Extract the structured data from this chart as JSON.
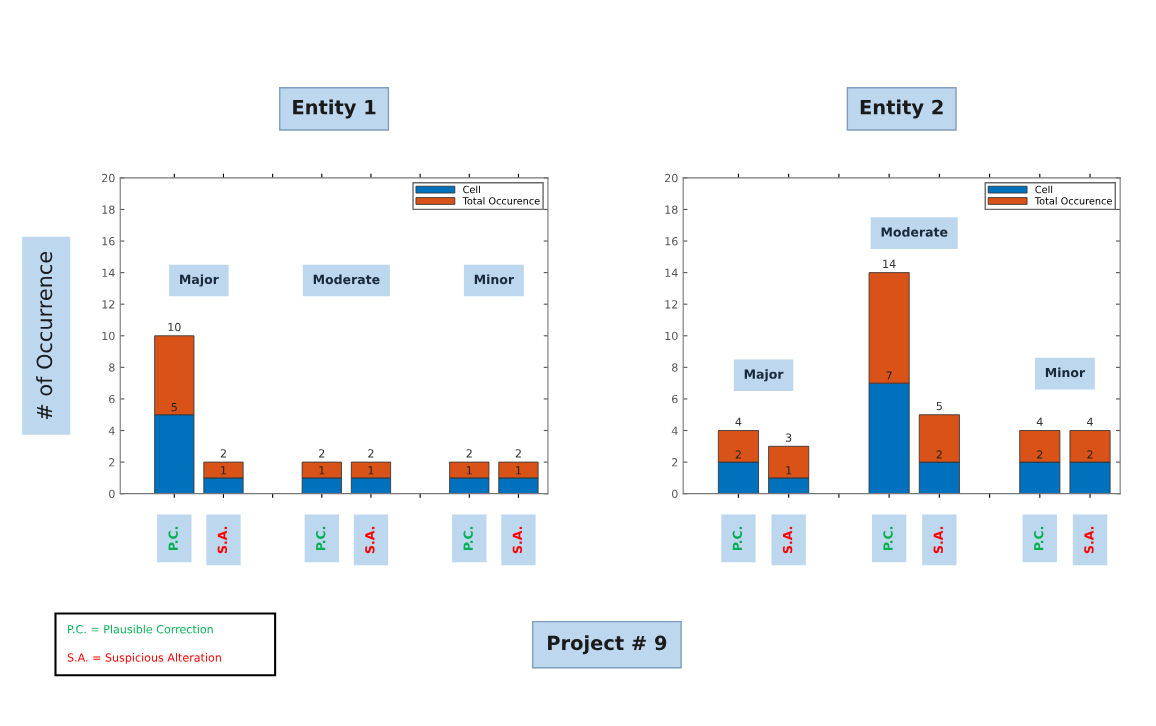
{
  "chart_data": [
    {
      "type": "bar",
      "title": "Entity 1",
      "ylabel": "# of Occurrence",
      "stacked": true,
      "legend": "top right",
      "categories": [
        "P.C.",
        "S.A.",
        null,
        "P.C.",
        "S.A.",
        null,
        "P.C.",
        "S.A."
      ],
      "series": [
        {
          "name": "Cell",
          "color": "#0072bd",
          "values": [
            5,
            1,
            null,
            1,
            1,
            null,
            1,
            1
          ],
          "value_labels": [
            "5",
            "1",
            null,
            "1",
            "1",
            null,
            "1",
            "1"
          ]
        },
        {
          "name": "Total Occurence",
          "color": "#d95319",
          "values": [
            5,
            1,
            null,
            1,
            1,
            null,
            1,
            1
          ]
        }
      ],
      "totals": [
        "10",
        "2",
        null,
        "2",
        "2",
        null,
        "2",
        "2"
      ],
      "ylim": [
        0,
        20
      ],
      "yticks": [
        0,
        2,
        4,
        6,
        8,
        10,
        12,
        14,
        16,
        18,
        20
      ],
      "annotations": [
        "Major",
        "Moderate",
        "Minor",
        "P.C. = Plausible Correction",
        "S.A. = Suspicious Alteration",
        "Project # 9"
      ]
    },
    {
      "type": "bar",
      "title": "Entity 2",
      "stacked": true,
      "legend": "top right",
      "categories": [
        "P.C.",
        "S.A.",
        null,
        "P.C.",
        "S.A.",
        null,
        "P.C.",
        "S.A."
      ],
      "series": [
        {
          "name": "Cell",
          "color": "#0072bd",
          "values": [
            2,
            1,
            null,
            7,
            2,
            null,
            2,
            2
          ],
          "value_labels": [
            "2",
            "1",
            null,
            "7",
            "2",
            null,
            "2",
            "2"
          ]
        },
        {
          "name": "Total Occurence",
          "color": "#d95319",
          "values": [
            2,
            2,
            null,
            7,
            3,
            null,
            2,
            2
          ]
        }
      ],
      "totals": [
        "4",
        "3",
        null,
        "14",
        "5",
        null,
        "4",
        "4"
      ],
      "ylim": [
        0,
        20
      ],
      "yticks": [
        0,
        2,
        4,
        6,
        8,
        10,
        12,
        14,
        16,
        18,
        20
      ],
      "annotations": [
        "Major",
        "Moderate",
        "Minor"
      ]
    }
  ]
}
